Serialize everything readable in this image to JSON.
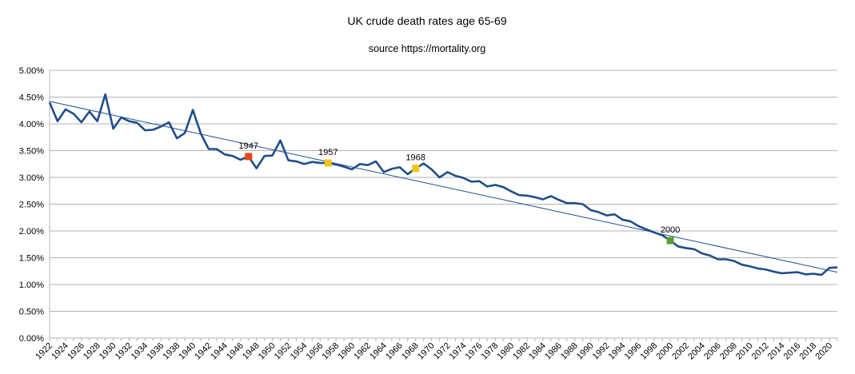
{
  "chart_data": {
    "type": "line",
    "title": "UK crude death rates age 65-69",
    "subtitle": "source https://mortality.org",
    "x": [
      1922,
      1923,
      1924,
      1925,
      1926,
      1927,
      1928,
      1929,
      1930,
      1931,
      1932,
      1933,
      1934,
      1935,
      1936,
      1937,
      1938,
      1939,
      1940,
      1941,
      1942,
      1943,
      1944,
      1945,
      1946,
      1947,
      1948,
      1949,
      1950,
      1951,
      1952,
      1953,
      1954,
      1955,
      1956,
      1957,
      1958,
      1959,
      1960,
      1961,
      1962,
      1963,
      1964,
      1965,
      1966,
      1967,
      1968,
      1969,
      1970,
      1971,
      1972,
      1973,
      1974,
      1975,
      1976,
      1977,
      1978,
      1979,
      1980,
      1981,
      1982,
      1983,
      1984,
      1985,
      1986,
      1987,
      1988,
      1989,
      1990,
      1991,
      1992,
      1993,
      1994,
      1995,
      1996,
      1997,
      1998,
      1999,
      2000,
      2001,
      2002,
      2003,
      2004,
      2005,
      2006,
      2007,
      2008,
      2009,
      2010,
      2011,
      2012,
      2013,
      2014,
      2015,
      2016,
      2017,
      2018,
      2019,
      2020,
      2021
    ],
    "series": [
      {
        "values": [
          4.4,
          4.05,
          4.27,
          4.19,
          4.03,
          4.23,
          4.05,
          4.55,
          3.91,
          4.12,
          4.05,
          4.02,
          3.88,
          3.89,
          3.95,
          4.03,
          3.73,
          3.83,
          4.26,
          3.82,
          3.53,
          3.53,
          3.43,
          3.4,
          3.33,
          3.39,
          3.17,
          3.4,
          3.41,
          3.69,
          3.32,
          3.3,
          3.25,
          3.29,
          3.27,
          3.27,
          3.24,
          3.2,
          3.15,
          3.25,
          3.23,
          3.3,
          3.1,
          3.16,
          3.19,
          3.06,
          3.17,
          3.26,
          3.15,
          3.0,
          3.1,
          3.03,
          2.99,
          2.92,
          2.93,
          2.83,
          2.86,
          2.82,
          2.74,
          2.67,
          2.66,
          2.63,
          2.59,
          2.65,
          2.58,
          2.52,
          2.52,
          2.5,
          2.39,
          2.35,
          2.29,
          2.31,
          2.21,
          2.18,
          2.09,
          2.03,
          1.97,
          1.92,
          1.82,
          1.71,
          1.68,
          1.66,
          1.58,
          1.54,
          1.47,
          1.47,
          1.44,
          1.37,
          1.34,
          1.3,
          1.28,
          1.24,
          1.21,
          1.22,
          1.23,
          1.19,
          1.2,
          1.18,
          1.31,
          1.32
        ],
        "color": "#1f4e8c"
      }
    ],
    "trendline": {
      "from": [
        1922,
        4.42
      ],
      "to": [
        2021,
        1.23
      ],
      "color": "#1f4e8c"
    },
    "highlights": [
      {
        "label": "1947",
        "x": 1947,
        "y": 3.39,
        "color": "#e8451e"
      },
      {
        "label": "1957",
        "x": 1957,
        "y": 3.27,
        "color": "#f5c21b"
      },
      {
        "label": "1968",
        "x": 1968,
        "y": 3.17,
        "color": "#f5c21b"
      },
      {
        "label": "2000",
        "x": 2000,
        "y": 1.82,
        "color": "#5a9e2f"
      }
    ],
    "ylim": [
      0,
      5
    ],
    "yticks": [
      "0.00%",
      "0.50%",
      "1.00%",
      "1.50%",
      "2.00%",
      "2.50%",
      "3.00%",
      "3.50%",
      "4.00%",
      "4.50%",
      "5.00%"
    ],
    "xtick_labels": [
      "1922",
      "1924",
      "1926",
      "1928",
      "1930",
      "1932",
      "1934",
      "1936",
      "1938",
      "1940",
      "1942",
      "1944",
      "1946",
      "1948",
      "1950",
      "1952",
      "1954",
      "1956",
      "1958",
      "1960",
      "1962",
      "1964",
      "1966",
      "1968",
      "1970",
      "1972",
      "1974",
      "1976",
      "1978",
      "1980",
      "1982",
      "1984",
      "1986",
      "1988",
      "1990",
      "1992",
      "1994",
      "1996",
      "1998",
      "2000",
      "2002",
      "2004",
      "2006",
      "2008",
      "2010",
      "2012",
      "2014",
      "2016",
      "2018",
      "2020"
    ],
    "grid": true,
    "legend": "none"
  }
}
